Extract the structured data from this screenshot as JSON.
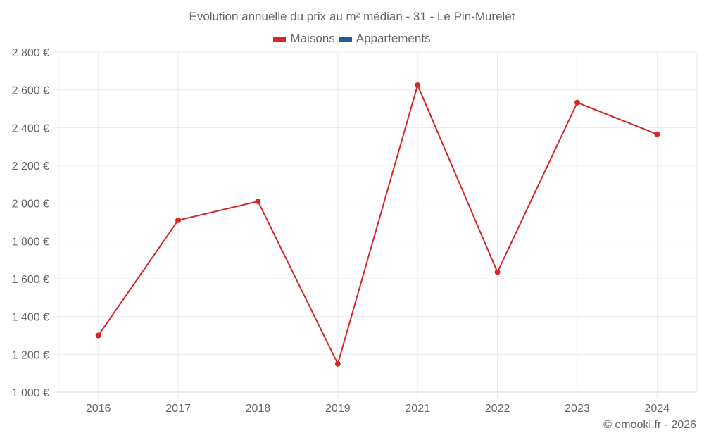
{
  "chart_data": {
    "type": "line",
    "title": "Evolution annuelle du prix au m² médian - 31 - Le Pin-Murelet",
    "xlabel": "",
    "ylabel": "",
    "categories": [
      "2016",
      "2017",
      "2018",
      "2019",
      "2021",
      "2022",
      "2023",
      "2024"
    ],
    "series": [
      {
        "name": "Maisons",
        "color": "#d62728",
        "values": [
          1300,
          1910,
          2010,
          1150,
          2625,
          1635,
          2533,
          2365
        ]
      },
      {
        "name": "Appartements",
        "color": "#1f5f99",
        "values": []
      }
    ],
    "ylim": [
      1000,
      2800
    ],
    "yticks": [
      1000,
      1200,
      1400,
      1600,
      1800,
      2000,
      2200,
      2400,
      2600,
      2800
    ],
    "ytick_labels": [
      "1 000 €",
      "1 200 €",
      "1 400 €",
      "1 600 €",
      "1 800 €",
      "2 000 €",
      "2 200 €",
      "2 400 €",
      "2 600 €",
      "2 800 €"
    ],
    "grid": true,
    "legend_position": "top"
  },
  "header": {
    "title": "Evolution annuelle du prix au m² médian - 31 - Le Pin-Murelet"
  },
  "legend": {
    "items": [
      {
        "label": "Maisons",
        "color": "#d62728"
      },
      {
        "label": "Appartements",
        "color": "#1f5f99"
      }
    ]
  },
  "footer": {
    "credit": "© emooki.fr - 2026"
  }
}
